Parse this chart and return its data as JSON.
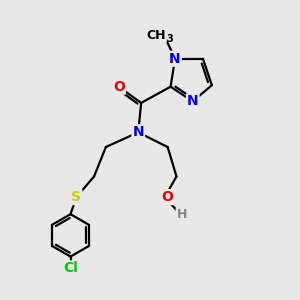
{
  "background_color": "#e8e8e8",
  "bond_color": "#000000",
  "atom_colors": {
    "N": "#0000ee",
    "O": "#ee0000",
    "S": "#cccc00",
    "Cl": "#00cc00",
    "H": "#888888"
  },
  "lw": 1.6,
  "fs": 10
}
